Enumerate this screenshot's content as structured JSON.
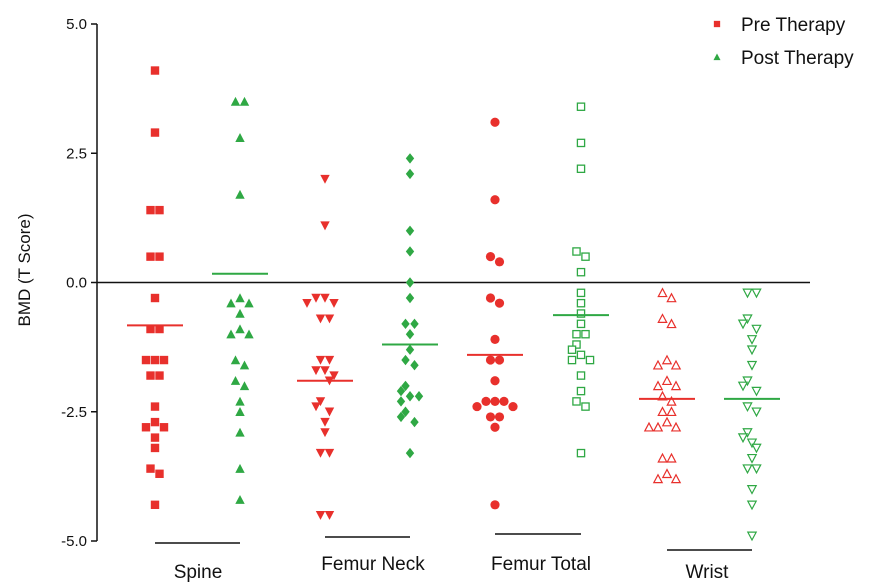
{
  "chart_data": {
    "type": "scatter",
    "title": "",
    "xlabel": "",
    "ylabel": "BMD (T Score)",
    "ylim": [
      -5.0,
      5.0
    ],
    "yticks": [
      5.0,
      2.5,
      0.0,
      -2.5,
      -5.0
    ],
    "ytick_labels": [
      "5.0",
      "2.5",
      "0.0",
      "-2.5",
      "-5.0"
    ],
    "reference_line": 0.0,
    "grid": false,
    "legend_position": "top-right",
    "categories": [
      "Spine",
      "Femur Neck",
      "Femur Total",
      "Wrist"
    ],
    "series": [
      {
        "name": "Pre Therapy",
        "color": "#e8302c",
        "groups": [
          {
            "category": "Spine",
            "marker": "square",
            "mean": -0.83,
            "values": [
              4.1,
              2.9,
              1.4,
              1.4,
              0.5,
              0.5,
              -0.3,
              -0.9,
              -0.9,
              -1.5,
              -1.5,
              -1.5,
              -1.8,
              -1.8,
              -2.4,
              -2.7,
              -2.8,
              -2.8,
              -3.0,
              -3.2,
              -3.6,
              -3.7,
              -4.3
            ]
          },
          {
            "category": "Femur Neck",
            "marker": "triangle-down",
            "mean": -1.9,
            "values": [
              2.0,
              1.1,
              -0.3,
              -0.3,
              -0.4,
              -0.4,
              -0.7,
              -0.7,
              -1.5,
              -1.5,
              -1.7,
              -1.7,
              -1.8,
              -1.9,
              -2.3,
              -2.4,
              -2.5,
              -2.7,
              -2.9,
              -3.3,
              -3.3,
              -4.5,
              -4.5
            ]
          },
          {
            "category": "Femur Total",
            "marker": "circle",
            "mean": -1.4,
            "values": [
              3.1,
              1.6,
              0.5,
              0.4,
              -0.3,
              -0.4,
              -1.1,
              -1.5,
              -1.5,
              -1.9,
              -2.3,
              -2.3,
              -2.3,
              -2.4,
              -2.4,
              -2.6,
              -2.6,
              -2.8,
              -4.3
            ]
          },
          {
            "category": "Wrist",
            "marker": "triangle-up-open",
            "mean": -2.25,
            "values": [
              -0.2,
              -0.3,
              -0.7,
              -0.8,
              -1.5,
              -1.6,
              -1.6,
              -1.9,
              -2.0,
              -2.0,
              -2.2,
              -2.3,
              -2.5,
              -2.5,
              -2.7,
              -2.8,
              -2.8,
              -2.8,
              -3.4,
              -3.4,
              -3.7,
              -3.8,
              -3.8
            ]
          }
        ]
      },
      {
        "name": "Post Therapy",
        "color": "#2fa844",
        "groups": [
          {
            "category": "Spine",
            "marker": "triangle-up",
            "mean": 0.17,
            "values": [
              3.5,
              3.5,
              2.8,
              1.7,
              -0.3,
              -0.4,
              -0.4,
              -0.6,
              -0.9,
              -1.0,
              -1.0,
              -1.5,
              -1.6,
              -1.9,
              -2.0,
              -2.3,
              -2.5,
              -2.9,
              -3.6,
              -4.2
            ]
          },
          {
            "category": "Femur Neck",
            "marker": "diamond",
            "mean": -1.2,
            "values": [
              2.4,
              2.1,
              1.0,
              0.6,
              0.0,
              -0.3,
              -0.8,
              -0.8,
              -1.0,
              -1.3,
              -1.5,
              -1.6,
              -2.0,
              -2.1,
              -2.2,
              -2.2,
              -2.3,
              -2.5,
              -2.6,
              -2.7,
              -3.3
            ]
          },
          {
            "category": "Femur Total",
            "marker": "square-open",
            "mean": -0.63,
            "values": [
              3.4,
              2.7,
              2.2,
              0.6,
              0.5,
              0.2,
              -0.2,
              -0.4,
              -0.6,
              -0.8,
              -1.0,
              -1.0,
              -1.2,
              -1.3,
              -1.4,
              -1.5,
              -1.5,
              -1.8,
              -2.1,
              -2.3,
              -2.4,
              -3.3
            ]
          },
          {
            "category": "Wrist",
            "marker": "triangle-down-open",
            "mean": -2.25,
            "values": [
              -0.2,
              -0.2,
              -0.7,
              -0.8,
              -0.9,
              -1.1,
              -1.3,
              -1.6,
              -1.9,
              -2.0,
              -2.1,
              -2.4,
              -2.5,
              -2.9,
              -3.0,
              -3.1,
              -3.2,
              -3.4,
              -3.6,
              -3.6,
              -4.0,
              -4.3,
              -4.9
            ]
          }
        ]
      }
    ]
  }
}
